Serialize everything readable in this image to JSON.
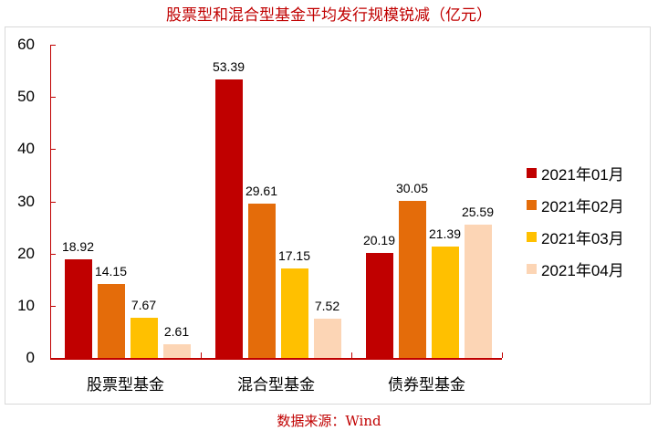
{
  "chart_data": {
    "type": "bar",
    "title": "股票型和混合型基金平均发行规模锐减（亿元）",
    "categories": [
      "股票型基金",
      "混合型基金",
      "债券型基金"
    ],
    "series": [
      {
        "name": "2021年01月",
        "color": "#c00000",
        "values": [
          18.92,
          53.39,
          20.19
        ]
      },
      {
        "name": "2021年02月",
        "color": "#e46c0a",
        "values": [
          14.15,
          29.61,
          30.05
        ]
      },
      {
        "name": "2021年03月",
        "color": "#ffc000",
        "values": [
          7.67,
          17.15,
          21.39
        ]
      },
      {
        "name": "2021年04月",
        "color": "#fcd5b5",
        "values": [
          2.61,
          7.52,
          25.59
        ]
      }
    ],
    "xlabel": "",
    "ylabel": "",
    "ylim": [
      0,
      60
    ],
    "yticks": [
      0,
      10,
      20,
      30,
      40,
      50,
      60
    ],
    "grid": false,
    "legend_position": "right",
    "data_labels": true,
    "source": "数据来源：Wind"
  }
}
